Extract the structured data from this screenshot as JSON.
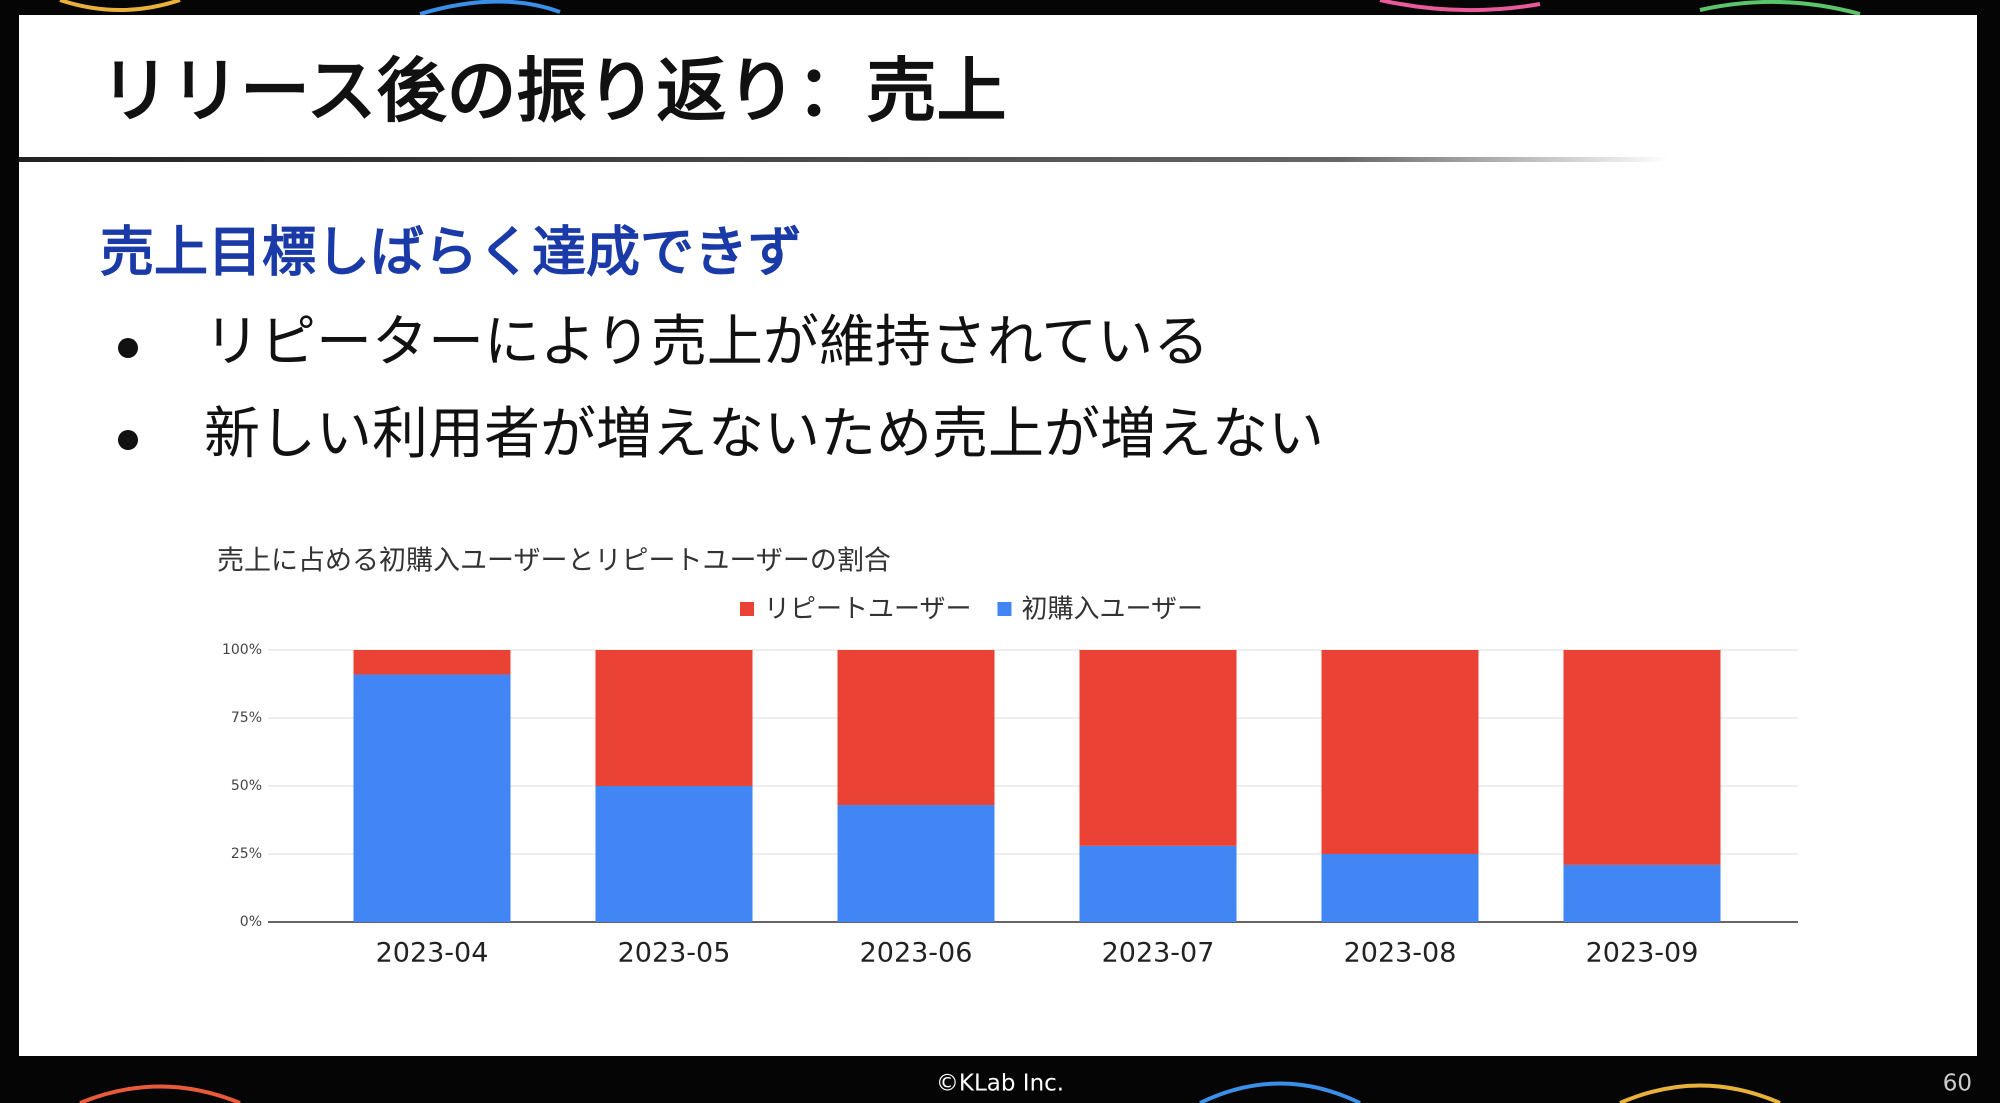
{
  "slide_title": "リリース後の振り返り：売上",
  "heading": "売上目標しばらく達成できず",
  "bullets": [
    "リピーターにより売上が維持されている",
    "新しい利用者が増えないため売上が増えない"
  ],
  "footer": "©KLab Inc.",
  "page_number": "60",
  "chart_data": {
    "type": "stacked_bar",
    "title": "売上に占める初購入ユーザーとリピートユーザーの割合",
    "categories": [
      "2023-04",
      "2023-05",
      "2023-06",
      "2023-07",
      "2023-08",
      "2023-09"
    ],
    "series": [
      {
        "name": "リピートユーザー",
        "color": "#ea4335",
        "values": [
          9,
          50,
          57,
          72,
          75,
          79
        ]
      },
      {
        "name": "初購入ユーザー",
        "color": "#4285f4",
        "values": [
          91,
          50,
          43,
          28,
          25,
          21
        ]
      }
    ],
    "ylim": [
      0,
      100
    ],
    "yticks": [
      {
        "value": 0,
        "label": "0%"
      },
      {
        "value": 25,
        "label": "25%"
      },
      {
        "value": 50,
        "label": "50%"
      },
      {
        "value": 75,
        "label": "75%"
      },
      {
        "value": 100,
        "label": "100%"
      }
    ],
    "grid": true,
    "legend": "top"
  }
}
